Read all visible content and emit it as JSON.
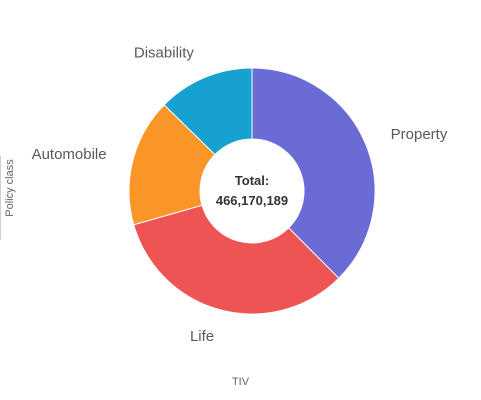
{
  "chart_data": {
    "type": "pie",
    "donut": true,
    "categories": [
      "Property",
      "Life",
      "Automobile",
      "Disability"
    ],
    "values": [
      175000000,
      154000000,
      78170189,
      59000000
    ],
    "colors": [
      "#6b6bd6",
      "#ef5454",
      "#fa9627",
      "#17a1d0"
    ],
    "center_title": "Total:",
    "center_value": "466,170,189",
    "legend_title": "Policy class",
    "xlabel": "TIV",
    "legend": "none"
  }
}
